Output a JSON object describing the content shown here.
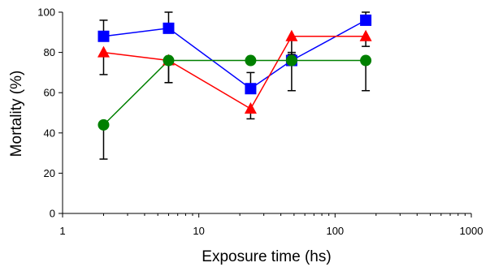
{
  "chart_data": {
    "type": "scatter",
    "title": "",
    "xlabel": "Exposure time (hs)",
    "ylabel": "Mortality (%)",
    "xscale": "log",
    "xlim": [
      1,
      1000
    ],
    "ylim": [
      0,
      100
    ],
    "x_ticks": [
      1,
      10,
      100,
      1000
    ],
    "x_tick_labels": [
      "1",
      "10",
      "100",
      "1000"
    ],
    "y_ticks": [
      0,
      20,
      40,
      60,
      80,
      100
    ],
    "y_tick_labels": [
      "0",
      "20",
      "40",
      "60",
      "80",
      "100"
    ],
    "grid": false,
    "legend": "none",
    "series": [
      {
        "color": "#0000ff",
        "marker": "square",
        "x": [
          2,
          6,
          24,
          48,
          168
        ],
        "y": [
          88,
          92,
          62,
          76,
          96
        ],
        "error_upper": [
          8,
          8,
          8,
          4,
          4
        ]
      },
      {
        "color": "#ff0000",
        "marker": "triangle",
        "x": [
          2,
          6,
          24,
          48,
          168
        ],
        "y": [
          80,
          76,
          52,
          88,
          88
        ],
        "error_lower": [
          11,
          11,
          5,
          9,
          5
        ]
      },
      {
        "color": "#008000",
        "marker": "circle",
        "x": [
          2,
          6,
          24,
          48,
          168
        ],
        "y": [
          44,
          76,
          76,
          76,
          76
        ],
        "error_lower": [
          17,
          11,
          0,
          15,
          15
        ]
      }
    ]
  }
}
